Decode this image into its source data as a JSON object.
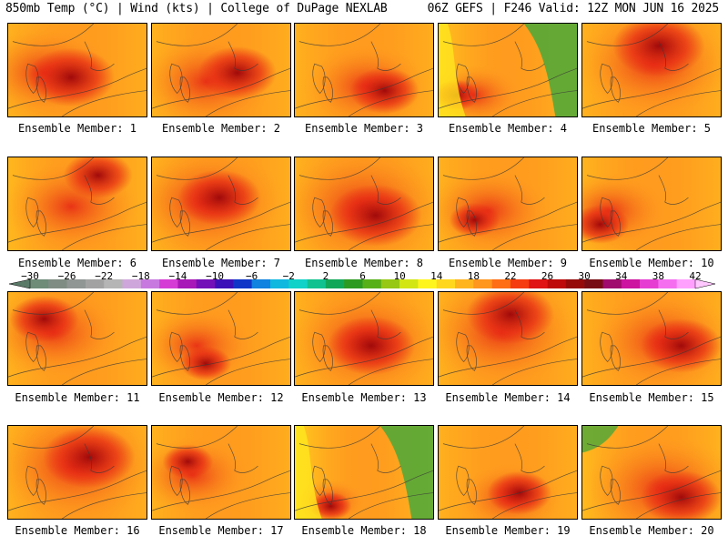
{
  "header": {
    "left_title": "850mb Temp (°C) | Wind (kts) | College of DuPage NEXLAB",
    "right_title": "06Z GEFS | F246 Valid: 12Z MON JUN 16 2025"
  },
  "members": [
    {
      "label": "Ensemble Member: 1"
    },
    {
      "label": "Ensemble Member: 2"
    },
    {
      "label": "Ensemble Member: 3"
    },
    {
      "label": "Ensemble Member: 4"
    },
    {
      "label": "Ensemble Member: 5"
    },
    {
      "label": "Ensemble Member: 6"
    },
    {
      "label": "Ensemble Member: 7"
    },
    {
      "label": "Ensemble Member: 8"
    },
    {
      "label": "Ensemble Member: 9"
    },
    {
      "label": "Ensemble Member: 10"
    },
    {
      "label": "Ensemble Member: 11"
    },
    {
      "label": "Ensemble Member: 12"
    },
    {
      "label": "Ensemble Member: 13"
    },
    {
      "label": "Ensemble Member: 14"
    },
    {
      "label": "Ensemble Member: 15"
    },
    {
      "label": "Ensemble Member: 16"
    },
    {
      "label": "Ensemble Member: 17"
    },
    {
      "label": "Ensemble Member: 18"
    },
    {
      "label": "Ensemble Member: 19"
    },
    {
      "label": "Ensemble Member: 20"
    }
  ],
  "colorbar": {
    "labels": [
      "−30",
      "−26",
      "−22",
      "−18",
      "−14",
      "−10",
      "−6",
      "−2",
      "2",
      "6",
      "10",
      "14",
      "18",
      "22",
      "26",
      "30",
      "34",
      "38",
      "42"
    ],
    "colors": [
      "#6e8c78",
      "#7f8c83",
      "#8f9693",
      "#a2a2a2",
      "#b5b5b5",
      "#cfa6dc",
      "#c879e0",
      "#d53cd6",
      "#a818b8",
      "#7410b8",
      "#3c10b8",
      "#1036c8",
      "#1082e0",
      "#10b8e0",
      "#10d2c8",
      "#10c290",
      "#10a858",
      "#2c9a20",
      "#58b018",
      "#96c814",
      "#d2e614",
      "#fff51e",
      "#ffd81e",
      "#ffb41e",
      "#ff961e",
      "#ff6e14",
      "#f53c10",
      "#e01414",
      "#be0a0a",
      "#960a0a",
      "#780c14",
      "#a00c6e",
      "#cc14a0",
      "#e63cd2",
      "#f56ef0",
      "#ffa0ff"
    ]
  },
  "colors": {
    "cool_green": "#4aa83a",
    "yellow": "#ffe61e",
    "orange": "#ff9b1e",
    "red": "#e62814",
    "dark_red": "#a00a0a"
  }
}
